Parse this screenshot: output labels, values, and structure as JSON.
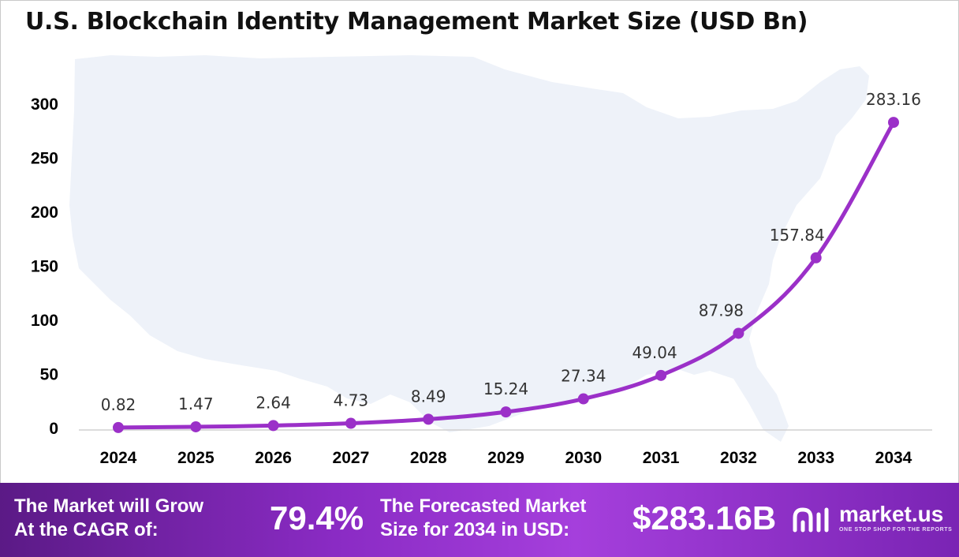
{
  "title": "U.S. Blockchain Identity Management Market Size (USD Bn)",
  "colors": {
    "line": "#9b30c8",
    "map": "#eef2f9",
    "footer_start": "#5b1a86",
    "footer_end": "#7a24b4"
  },
  "chart_data": {
    "type": "line",
    "categories": [
      "2024",
      "2025",
      "2026",
      "2027",
      "2028",
      "2029",
      "2030",
      "2031",
      "2032",
      "2033",
      "2034"
    ],
    "series": [
      {
        "values": [
          0.82,
          1.47,
          2.64,
          4.73,
          8.49,
          15.24,
          27.34,
          49.04,
          87.98,
          157.84,
          283.16
        ]
      }
    ],
    "data_labels": [
      "0.82",
      "1.47",
      "2.64",
      "4.73",
      "8.49",
      "15.24",
      "27.34",
      "49.04",
      "87.98",
      "157.84",
      "283.16"
    ],
    "yticks": [
      "0",
      "50",
      "100",
      "150",
      "200",
      "250",
      "300"
    ],
    "ylim": [
      0,
      300
    ],
    "grid": false,
    "legend": "none"
  },
  "footer": {
    "cagr_label_line1": "The Market will Grow",
    "cagr_label_line2": "At the CAGR of:",
    "cagr_value": "79.4%",
    "forecast_label_line1": "The Forecasted Market",
    "forecast_label_line2": "Size for 2034 in USD:",
    "forecast_value": "$283.16B",
    "brand_name": "market.us",
    "brand_tagline": "ONE STOP SHOP FOR THE REPORTS",
    "brand_icon": "market-us-logo-icon"
  }
}
